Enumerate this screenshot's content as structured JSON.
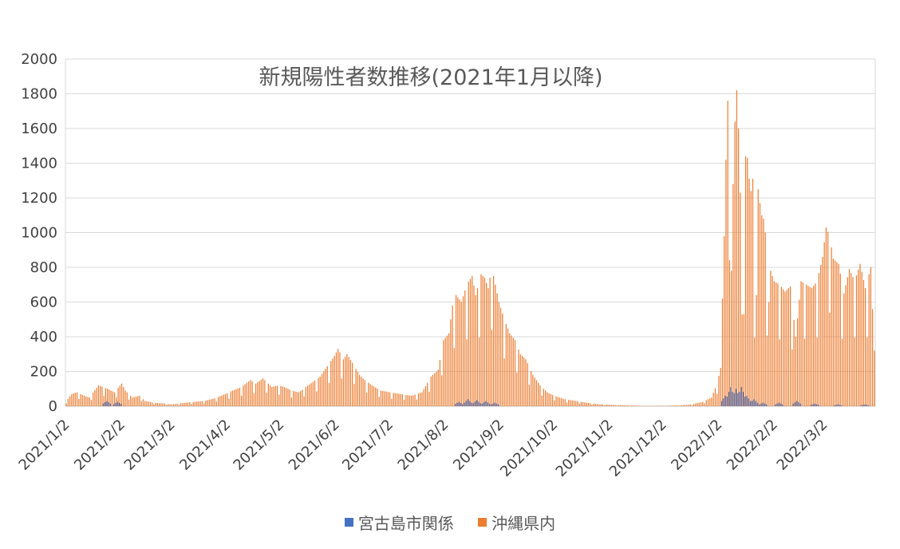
{
  "chart_data": {
    "type": "bar",
    "title": "新規陽性者数推移(2021年1月以降)",
    "xlabel": "",
    "ylabel": "",
    "ylim": [
      0,
      2000
    ],
    "yticks": [
      0,
      200,
      400,
      600,
      800,
      1000,
      1200,
      1400,
      1600,
      1800,
      2000
    ],
    "x_start": "2021-01-02",
    "x_end": "2022-03-30",
    "xtick_labels": [
      "2021/1/2",
      "2021/2/2",
      "2021/3/2",
      "2021/4/2",
      "2021/5/2",
      "2021/6/2",
      "2021/7/2",
      "2021/8/2",
      "2021/9/2",
      "2021/10/2",
      "2021/11/2",
      "2021/12/2",
      "2022/1/2",
      "2022/2/2",
      "2022/3/2"
    ],
    "xtick_dates": [
      "2021-01-02",
      "2021-02-02",
      "2021-03-02",
      "2021-04-02",
      "2021-05-02",
      "2021-06-02",
      "2021-07-02",
      "2021-08-02",
      "2021-09-02",
      "2021-10-02",
      "2021-11-02",
      "2021-12-02",
      "2022-01-02",
      "2022-02-02",
      "2022-03-02"
    ],
    "grid": true,
    "legend_position": "bottom",
    "series": [
      {
        "name": "宮古島市関係",
        "color": "#4472C4",
        "points": [
          [
            "2021-01-25",
            30
          ],
          [
            "2021-01-31",
            25
          ],
          [
            "2021-08-10",
            25
          ],
          [
            "2021-08-15",
            40
          ],
          [
            "2021-08-20",
            35
          ],
          [
            "2021-08-25",
            30
          ],
          [
            "2021-08-30",
            20
          ],
          [
            "2022-01-06",
            60
          ],
          [
            "2022-01-09",
            110
          ],
          [
            "2022-01-12",
            100
          ],
          [
            "2022-01-15",
            110
          ],
          [
            "2022-01-18",
            60
          ],
          [
            "2022-01-22",
            40
          ],
          [
            "2022-01-27",
            20
          ],
          [
            "2022-02-05",
            20
          ],
          [
            "2022-02-15",
            30
          ],
          [
            "2022-02-25",
            15
          ],
          [
            "2022-03-10",
            10
          ],
          [
            "2022-03-25",
            10
          ]
        ]
      },
      {
        "name": "沖縄県内",
        "color": "#ED7D31",
        "points": [
          [
            "2021-01-02",
            30
          ],
          [
            "2021-01-05",
            70
          ],
          [
            "2021-01-08",
            80
          ],
          [
            "2021-01-12",
            60
          ],
          [
            "2021-01-15",
            50
          ],
          [
            "2021-01-20",
            120
          ],
          [
            "2021-01-25",
            100
          ],
          [
            "2021-01-29",
            80
          ],
          [
            "2021-02-02",
            130
          ],
          [
            "2021-02-04",
            90
          ],
          [
            "2021-02-08",
            50
          ],
          [
            "2021-02-12",
            60
          ],
          [
            "2021-02-15",
            30
          ],
          [
            "2021-02-20",
            20
          ],
          [
            "2021-02-26",
            15
          ],
          [
            "2021-03-02",
            10
          ],
          [
            "2021-03-10",
            20
          ],
          [
            "2021-03-20",
            30
          ],
          [
            "2021-03-26",
            45
          ],
          [
            "2021-04-01",
            70
          ],
          [
            "2021-04-05",
            90
          ],
          [
            "2021-04-10",
            110
          ],
          [
            "2021-04-15",
            150
          ],
          [
            "2021-04-18",
            130
          ],
          [
            "2021-04-22",
            160
          ],
          [
            "2021-04-27",
            110
          ],
          [
            "2021-05-01",
            120
          ],
          [
            "2021-05-04",
            110
          ],
          [
            "2021-05-08",
            90
          ],
          [
            "2021-05-12",
            80
          ],
          [
            "2021-05-16",
            110
          ],
          [
            "2021-05-20",
            140
          ],
          [
            "2021-05-24",
            170
          ],
          [
            "2021-05-28",
            230
          ],
          [
            "2021-06-01",
            290
          ],
          [
            "2021-06-03",
            330
          ],
          [
            "2021-06-06",
            270
          ],
          [
            "2021-06-08",
            300
          ],
          [
            "2021-06-11",
            250
          ],
          [
            "2021-06-15",
            180
          ],
          [
            "2021-06-18",
            150
          ],
          [
            "2021-06-22",
            120
          ],
          [
            "2021-06-27",
            90
          ],
          [
            "2021-07-02",
            80
          ],
          [
            "2021-07-08",
            70
          ],
          [
            "2021-07-14",
            60
          ],
          [
            "2021-07-20",
            80
          ],
          [
            "2021-07-25",
            170
          ],
          [
            "2021-07-29",
            210
          ],
          [
            "2021-08-01",
            380
          ],
          [
            "2021-08-04",
            420
          ],
          [
            "2021-08-06",
            580
          ],
          [
            "2021-08-08",
            640
          ],
          [
            "2021-08-11",
            600
          ],
          [
            "2021-08-14",
            700
          ],
          [
            "2021-08-17",
            750
          ],
          [
            "2021-08-19",
            640
          ],
          [
            "2021-08-22",
            760
          ],
          [
            "2021-08-24",
            740
          ],
          [
            "2021-08-26",
            680
          ],
          [
            "2021-08-28",
            800
          ],
          [
            "2021-08-30",
            700
          ],
          [
            "2021-09-01",
            600
          ],
          [
            "2021-09-04",
            500
          ],
          [
            "2021-09-07",
            420
          ],
          [
            "2021-09-10",
            380
          ],
          [
            "2021-09-13",
            300
          ],
          [
            "2021-09-16",
            270
          ],
          [
            "2021-09-20",
            180
          ],
          [
            "2021-09-24",
            120
          ],
          [
            "2021-09-28",
            80
          ],
          [
            "2021-10-02",
            60
          ],
          [
            "2021-10-08",
            40
          ],
          [
            "2021-10-14",
            30
          ],
          [
            "2021-10-20",
            20
          ],
          [
            "2021-10-26",
            12
          ],
          [
            "2021-11-02",
            8
          ],
          [
            "2021-11-10",
            5
          ],
          [
            "2021-11-20",
            2
          ],
          [
            "2021-12-01",
            2
          ],
          [
            "2021-12-10",
            4
          ],
          [
            "2021-12-18",
            10
          ],
          [
            "2021-12-24",
            25
          ],
          [
            "2021-12-29",
            50
          ],
          [
            "2022-01-01",
            130
          ],
          [
            "2022-01-03",
            220
          ],
          [
            "2022-01-04",
            620
          ],
          [
            "2022-01-05",
            980
          ],
          [
            "2022-01-06",
            1420
          ],
          [
            "2022-01-07",
            1760
          ],
          [
            "2022-01-08",
            1530
          ],
          [
            "2022-01-09",
            780
          ],
          [
            "2022-01-10",
            1280
          ],
          [
            "2022-01-11",
            1640
          ],
          [
            "2022-01-12",
            1820
          ],
          [
            "2022-01-13",
            1600
          ],
          [
            "2022-01-14",
            1230
          ],
          [
            "2022-01-15",
            960
          ],
          [
            "2022-01-16",
            530
          ],
          [
            "2022-01-17",
            1440
          ],
          [
            "2022-01-18",
            1430
          ],
          [
            "2022-01-19",
            1310
          ],
          [
            "2022-01-20",
            1240
          ],
          [
            "2022-01-21",
            1310
          ],
          [
            "2022-01-22",
            720
          ],
          [
            "2022-01-23",
            640
          ],
          [
            "2022-01-24",
            1250
          ],
          [
            "2022-01-25",
            1170
          ],
          [
            "2022-01-26",
            1100
          ],
          [
            "2022-01-27",
            1080
          ],
          [
            "2022-01-28",
            1000
          ],
          [
            "2022-01-29",
            740
          ],
          [
            "2022-01-30",
            600
          ],
          [
            "2022-01-31",
            780
          ],
          [
            "2022-02-02",
            720
          ],
          [
            "2022-02-05",
            700
          ],
          [
            "2022-02-08",
            660
          ],
          [
            "2022-02-11",
            690
          ],
          [
            "2022-02-14",
            400
          ],
          [
            "2022-02-17",
            720
          ],
          [
            "2022-02-20",
            700
          ],
          [
            "2022-02-23",
            680
          ],
          [
            "2022-02-26",
            720
          ],
          [
            "2022-03-01",
            860
          ],
          [
            "2022-03-03",
            1030
          ],
          [
            "2022-03-05",
            980
          ],
          [
            "2022-03-07",
            850
          ],
          [
            "2022-03-10",
            820
          ],
          [
            "2022-03-13",
            650
          ],
          [
            "2022-03-16",
            790
          ],
          [
            "2022-03-19",
            720
          ],
          [
            "2022-03-22",
            820
          ],
          [
            "2022-03-25",
            680
          ],
          [
            "2022-03-28",
            800
          ],
          [
            "2022-03-30",
            320
          ]
        ]
      }
    ]
  }
}
